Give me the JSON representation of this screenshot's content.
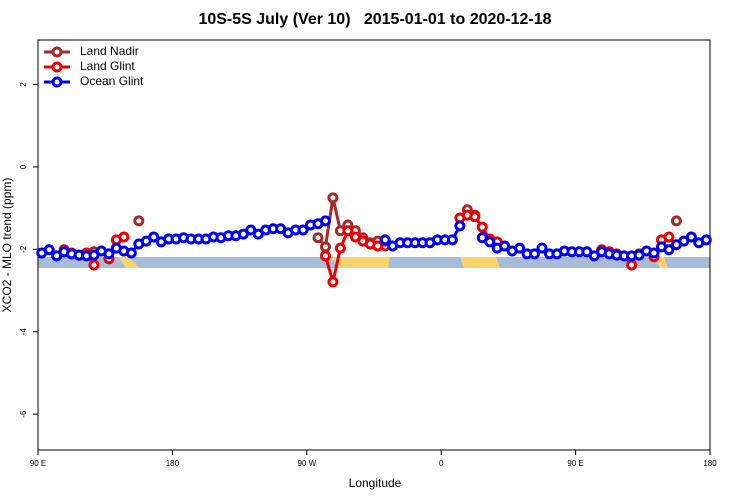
{
  "chart_data": {
    "type": "line",
    "title": "10S-5S July (Ver 10)   2015-01-01 to 2020-12-18",
    "xlabel": "Longitude",
    "ylabel": "XCO2 - MLO trend (ppm)",
    "xlim": [
      90,
      540
    ],
    "ylim": [
      -6.87,
      3.08
    ],
    "xticks": [
      {
        "value": 90,
        "label": "90 E"
      },
      180,
      {
        "value": 270,
        "label": "90 W"
      },
      {
        "value": 360,
        "label": "0"
      },
      {
        "value": 450,
        "label": "90 E"
      },
      {
        "value": 540,
        "label": "180"
      }
    ],
    "yticks": [
      -6,
      -4,
      -2,
      0,
      2
    ],
    "legend": "top-left",
    "x": [
      92.5,
      97.5,
      102.5,
      107.5,
      112.5,
      117.5,
      122.5,
      127.5,
      132.5,
      137.5,
      142.5,
      147.5,
      152.5,
      157.5,
      162.5,
      167.5,
      172.5,
      177.5,
      182.5,
      187.5,
      192.5,
      197.5,
      202.5,
      207.5,
      212.5,
      217.5,
      222.5,
      227.5,
      232.5,
      237.5,
      242.5,
      247.5,
      252.5,
      257.5,
      262.5,
      267.5,
      272.5,
      277.5,
      282.5,
      287.5,
      292.5,
      297.5,
      302.5,
      307.5,
      312.5,
      317.5,
      322.5,
      327.5,
      332.5,
      337.5,
      342.5,
      347.5,
      352.5,
      357.5,
      362.5,
      367.5,
      372.5,
      377.5,
      382.5,
      387.5,
      392.5,
      397.5,
      402.5,
      407.5,
      412.5,
      417.5,
      422.5,
      427.5,
      432.5,
      437.5,
      442.5,
      447.5,
      452.5,
      457.5,
      462.5,
      467.5,
      472.5,
      477.5,
      482.5,
      487.5,
      492.5,
      497.5,
      502.5,
      507.5,
      512.5,
      517.5,
      522.5,
      527.5,
      532.5,
      537.5
    ],
    "series": [
      {
        "name": "Land Nadir",
        "color": "#a52a2a",
        "values": [
          null,
          null,
          null,
          -2.06,
          -2.11,
          null,
          -2.14,
          -2.06,
          null,
          null,
          null,
          null,
          null,
          -1.31,
          null,
          null,
          null,
          null,
          null,
          null,
          null,
          null,
          null,
          null,
          null,
          null,
          null,
          null,
          null,
          null,
          null,
          null,
          null,
          null,
          null,
          null,
          null,
          -1.72,
          -1.94,
          -0.75,
          -1.55,
          -1.41,
          -1.55,
          -1.72,
          -1.84,
          -1.8,
          -1.92,
          null,
          null,
          null,
          null,
          null,
          null,
          null,
          null,
          null,
          null,
          -1.04,
          -1.17,
          null,
          null,
          null,
          null,
          null,
          null,
          null,
          null,
          null,
          null,
          null,
          null,
          null,
          null,
          null,
          null,
          -2.04,
          -2.09,
          null,
          null,
          null,
          -2.11,
          null,
          null,
          null,
          null,
          -1.31,
          null,
          null,
          null,
          null
        ]
      },
      {
        "name": "Land Glint",
        "color": "#ee0000",
        "values": [
          null,
          null,
          null,
          -2.01,
          -2.09,
          -2.14,
          -2.09,
          -2.38,
          null,
          -2.23,
          -1.77,
          -1.7,
          null,
          null,
          null,
          null,
          null,
          null,
          null,
          null,
          null,
          null,
          null,
          null,
          null,
          null,
          null,
          null,
          null,
          null,
          null,
          null,
          null,
          null,
          null,
          null,
          null,
          null,
          -2.16,
          -2.79,
          -1.97,
          -1.55,
          -1.7,
          -1.8,
          -1.87,
          -1.92,
          -1.8,
          null,
          null,
          null,
          null,
          null,
          null,
          null,
          null,
          null,
          -1.24,
          -1.17,
          -1.21,
          -1.46,
          -1.75,
          -1.82,
          null,
          null,
          null,
          null,
          null,
          null,
          null,
          null,
          null,
          null,
          null,
          null,
          null,
          -2.01,
          -2.06,
          -2.11,
          -2.16,
          -2.38,
          null,
          null,
          -2.18,
          -1.77,
          -1.7,
          null,
          null,
          null,
          null,
          null
        ]
      },
      {
        "name": "Ocean Glint",
        "color": "#0000ee",
        "values": [
          -2.09,
          -2.01,
          -2.16,
          -2.06,
          -2.11,
          -2.14,
          -2.16,
          -2.14,
          -2.04,
          -2.11,
          -1.97,
          -2.04,
          -2.09,
          -1.87,
          -1.8,
          -1.7,
          -1.82,
          -1.75,
          -1.75,
          -1.72,
          -1.75,
          -1.75,
          -1.75,
          -1.7,
          -1.72,
          -1.67,
          -1.67,
          -1.63,
          -1.53,
          -1.63,
          -1.53,
          -1.5,
          -1.5,
          -1.6,
          -1.53,
          -1.53,
          -1.41,
          -1.38,
          -1.31,
          null,
          null,
          null,
          null,
          null,
          null,
          null,
          -1.77,
          -1.92,
          -1.84,
          -1.84,
          -1.84,
          -1.84,
          -1.84,
          -1.77,
          -1.77,
          -1.77,
          -1.43,
          null,
          null,
          -1.72,
          -1.82,
          -1.97,
          -1.92,
          -2.04,
          -1.97,
          -2.11,
          -2.11,
          -1.97,
          -2.11,
          -2.11,
          -2.04,
          -2.06,
          -2.06,
          -2.06,
          -2.16,
          -2.06,
          -2.11,
          -2.14,
          -2.16,
          -2.16,
          -2.14,
          -2.04,
          -2.09,
          -1.94,
          -2.01,
          -1.89,
          -1.8,
          -1.7,
          -1.84,
          -1.77
        ]
      }
    ]
  }
}
